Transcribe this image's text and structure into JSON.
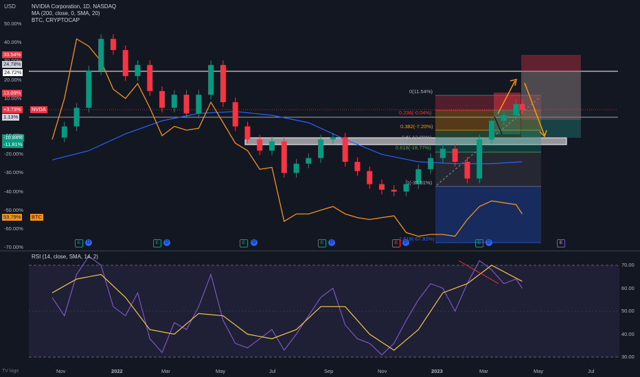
{
  "legend": {
    "currency": "USD",
    "line1": "NVIDIA Corporation, 1D, NASDAQ",
    "line2": "MA (200, close, 0, SMA, 20)",
    "line3": "BTC, CRYPTOCAP",
    "rsi": "RSI (14, close, SMA, 14, 2)"
  },
  "tradingview_glyph": "TV logo",
  "left_tags": [
    {
      "text": "33.54%",
      "bg": "#f23645",
      "fg": "#ffffff"
    },
    {
      "text": "24.78%",
      "bg": "#d1d4dc",
      "fg": "#131722"
    },
    {
      "text": "24.72%",
      "bg": "#ffffff",
      "fg": "#131722"
    },
    {
      "text": "13.09%",
      "bg": "#f23645",
      "fg": "#ffffff"
    },
    {
      "text": "+3.73%",
      "bg": "#f23645",
      "fg": "#ffffff"
    },
    {
      "text": "NVDA",
      "bg": "#f23645",
      "fg": "#ffffff"
    },
    {
      "text": "1.13%",
      "bg": "#d1d4dc",
      "fg": "#131722"
    },
    {
      "text": "-10.84%",
      "bg": "#089981",
      "fg": "#ffffff"
    },
    {
      "text": "-11.81%",
      "bg": "#089981",
      "fg": "#ffffff"
    },
    {
      "text": "53.79%",
      "bg": "#f7931a",
      "fg": "#131722"
    },
    {
      "text": "BTC",
      "bg": "#f7931a",
      "fg": "#131722"
    }
  ],
  "fib_labels": [
    {
      "text": "0(11.54%)",
      "color": "#b2b5be"
    },
    {
      "text": "0.236(-0.04%)",
      "color": "#f23645"
    },
    {
      "text": "0.382(-7.20%)",
      "color": "#ff9800"
    },
    {
      "text": "0.5(-12.99%)",
      "color": "#9598a1"
    },
    {
      "text": "0.618(-18.77%)",
      "color": "#4caf50"
    },
    {
      "text": "1(-37.51%)",
      "color": "#b2b5be"
    },
    {
      "text": "1.618(-67.82%)",
      "color": "#2962ff"
    }
  ],
  "badges": {
    "earnings": "E",
    "dividends": "D"
  },
  "colors": {
    "background": "#131722",
    "up": "#089981",
    "down": "#f23645",
    "ma": "#2962ff",
    "btc": "#f7931a",
    "rsi": "#7e57c2",
    "rsi_ma": "#f2c94c",
    "arrow": "#ff9800",
    "target": "#26a69a",
    "stop": "#f23645"
  },
  "chart_data": [
    {
      "type": "line",
      "title": "NVIDIA Corporation, 1D, NASDAQ",
      "ylabel": "USD",
      "y_unit": "% change",
      "ylim": [
        -70,
        55
      ],
      "y_ticks": [
        "50.00%",
        "40.00%",
        "30.00%",
        "20.00%",
        "10.00%",
        "-10.00%",
        "-20.00%",
        "-30.00%",
        "-40.00%",
        "-50.00%",
        "-60.00%",
        "-70.00%"
      ],
      "x_ticks": [
        "Nov",
        "2022",
        "Mar",
        "May",
        "Jul",
        "Sep",
        "Nov",
        "2023",
        "Mar",
        "May",
        "Jul"
      ],
      "series": [
        {
          "name": "NVIDIA Corporation, 1D, NASDAQ",
          "style": "candles",
          "x": [
            "2021-09-20",
            "2021-10-04",
            "2021-10-18",
            "2021-11-01",
            "2021-11-15",
            "2021-11-29",
            "2021-12-13",
            "2021-12-27",
            "2022-01-10",
            "2022-01-24",
            "2022-02-07",
            "2022-02-21",
            "2022-03-07",
            "2022-03-21",
            "2022-04-04",
            "2022-04-18",
            "2022-05-02",
            "2022-05-16",
            "2022-05-30",
            "2022-06-13",
            "2022-06-27",
            "2022-07-11",
            "2022-07-25",
            "2022-08-08",
            "2022-08-22",
            "2022-09-05",
            "2022-09-19",
            "2022-10-03",
            "2022-10-17",
            "2022-10-31",
            "2022-11-14",
            "2022-11-28",
            "2022-12-12",
            "2022-12-26",
            "2023-01-09",
            "2023-01-23",
            "2023-02-06",
            "2023-02-20",
            "2023-03-06",
            "2023-03-13"
          ],
          "values": [
            -11,
            -5,
            5,
            25,
            42,
            36,
            22,
            28,
            14,
            5,
            12,
            2,
            12,
            28,
            8,
            -5,
            -12,
            -18,
            -13,
            -30,
            -25,
            -22,
            -12,
            -11,
            -24,
            -29,
            -36,
            -39,
            -40,
            -36,
            -28,
            -22,
            -17,
            -24,
            -33,
            -12,
            -2,
            1,
            7,
            4
          ]
        },
        {
          "name": "MA (200, close, 0, SMA, 20)",
          "style": "line",
          "x": [
            "2021-09-20",
            "2021-11-01",
            "2021-12-13",
            "2022-01-24",
            "2022-03-07",
            "2022-04-18",
            "2022-05-30",
            "2022-07-11",
            "2022-08-22",
            "2022-10-03",
            "2022-11-14",
            "2022-12-26",
            "2023-02-06",
            "2023-03-13"
          ],
          "values": [
            -23,
            -18,
            -9,
            -2,
            2,
            3,
            1,
            -3,
            -12,
            -20,
            -24,
            -25,
            -25,
            -24
          ]
        },
        {
          "name": "BTC, CRYPTOCAP",
          "style": "line",
          "x": [
            "2021-09-20",
            "2021-10-04",
            "2021-10-18",
            "2021-11-01",
            "2021-11-15",
            "2021-11-29",
            "2021-12-13",
            "2021-12-27",
            "2022-01-10",
            "2022-01-24",
            "2022-02-07",
            "2022-02-21",
            "2022-03-07",
            "2022-03-21",
            "2022-04-04",
            "2022-04-18",
            "2022-05-02",
            "2022-05-16",
            "2022-05-30",
            "2022-06-13",
            "2022-06-27",
            "2022-07-11",
            "2022-07-25",
            "2022-08-08",
            "2022-08-22",
            "2022-09-05",
            "2022-09-19",
            "2022-10-03",
            "2022-10-17",
            "2022-10-31",
            "2022-11-14",
            "2022-11-28",
            "2022-12-12",
            "2022-12-26",
            "2023-01-09",
            "2023-01-23",
            "2023-02-06",
            "2023-02-20",
            "2023-03-06",
            "2023-03-13"
          ],
          "values": [
            -12,
            10,
            42,
            38,
            30,
            15,
            10,
            18,
            5,
            -10,
            -5,
            -7,
            -6,
            8,
            -3,
            -14,
            -18,
            -28,
            -27,
            -56,
            -52,
            -52,
            -50,
            -48,
            -52,
            -54,
            -55,
            -54,
            -53,
            -62,
            -64,
            -63,
            -63,
            -64,
            -55,
            -48,
            -45,
            -46,
            -47,
            -52
          ]
        }
      ]
    },
    {
      "type": "line",
      "title": "RSI (14, close, SMA, 14, 2)",
      "ylim": [
        29,
        74
      ],
      "y_ticks": [
        "70.00",
        "60.00",
        "50.00",
        "40.00",
        "30.00"
      ],
      "series": [
        {
          "name": "RSI (14, close, SMA, 14, 2)",
          "x": [
            "2021-09-20",
            "2021-10-04",
            "2021-10-18",
            "2021-11-01",
            "2021-11-15",
            "2021-11-29",
            "2021-12-13",
            "2021-12-27",
            "2022-01-10",
            "2022-01-24",
            "2022-02-07",
            "2022-02-21",
            "2022-03-07",
            "2022-03-21",
            "2022-04-04",
            "2022-04-18",
            "2022-05-02",
            "2022-05-16",
            "2022-05-30",
            "2022-06-13",
            "2022-06-27",
            "2022-07-11",
            "2022-07-25",
            "2022-08-08",
            "2022-08-22",
            "2022-09-05",
            "2022-09-19",
            "2022-10-03",
            "2022-10-17",
            "2022-10-31",
            "2022-11-14",
            "2022-11-28",
            "2022-12-12",
            "2022-12-26",
            "2023-01-09",
            "2023-01-23",
            "2023-02-06",
            "2023-02-20",
            "2023-03-06",
            "2023-03-13"
          ],
          "values": [
            56,
            48,
            66,
            74,
            70,
            52,
            48,
            58,
            38,
            32,
            45,
            42,
            52,
            66,
            46,
            36,
            34,
            38,
            42,
            33,
            40,
            48,
            56,
            60,
            44,
            38,
            36,
            31,
            36,
            46,
            55,
            62,
            60,
            50,
            62,
            72,
            68,
            62,
            64,
            60
          ]
        },
        {
          "name": "RSI-based MA",
          "x": [
            "2021-09-20",
            "2021-10-18",
            "2021-11-15",
            "2021-12-13",
            "2022-01-10",
            "2022-02-07",
            "2022-03-07",
            "2022-04-04",
            "2022-05-02",
            "2022-05-30",
            "2022-06-27",
            "2022-07-25",
            "2022-08-22",
            "2022-09-19",
            "2022-10-17",
            "2022-11-14",
            "2022-12-12",
            "2023-01-09",
            "2023-02-06",
            "2023-03-13"
          ],
          "values": [
            58,
            64,
            66,
            56,
            42,
            40,
            49,
            48,
            40,
            38,
            42,
            52,
            52,
            40,
            33,
            42,
            58,
            62,
            70,
            63
          ]
        }
      ]
    }
  ]
}
